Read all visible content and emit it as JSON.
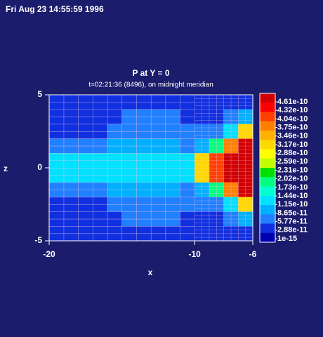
{
  "chart_data": {
    "type": "heatmap",
    "timestamp": "Fri Aug 23 14:55:59 1996",
    "title": "P at Y = 0",
    "subtitle": "t=02:21:36 (8496), on midnight meridian",
    "x_label": "x",
    "y_label": "z",
    "xlim": [
      -20,
      -6
    ],
    "ylim": [
      -5,
      5
    ],
    "xticks": [
      -20,
      -10,
      -6
    ],
    "yticks": [
      -5,
      0,
      5
    ],
    "x": [
      -19.5,
      -18.5,
      -17.5,
      -16.5,
      -15.5,
      -14.5,
      -13.5,
      -12.5,
      -11.5,
      -10.5,
      -9.5,
      -8.5,
      -7.5,
      -6.5
    ],
    "y": [
      4.5,
      3.5,
      2.5,
      1.5,
      0.5,
      -0.5,
      -1.5,
      -2.5,
      -3.5,
      -4.5
    ],
    "values": [
      [
        4e-11,
        4e-11,
        4e-11,
        4e-11,
        4e-11,
        4e-11,
        4e-11,
        4e-11,
        4e-11,
        4e-11,
        4e-11,
        4e-11,
        5e-11,
        5e-11
      ],
      [
        4e-11,
        4e-11,
        4e-11,
        4e-11,
        4e-11,
        6e-11,
        6e-11,
        6e-11,
        6e-11,
        4e-11,
        4e-11,
        5e-11,
        6e-11,
        1e-10
      ],
      [
        5e-11,
        5e-11,
        5e-11,
        5e-11,
        7e-11,
        7e-11,
        7e-11,
        7e-11,
        7e-11,
        6e-11,
        6e-11,
        7e-11,
        1.3e-10,
        3e-10
      ],
      [
        7e-11,
        7e-11,
        7e-11,
        7e-11,
        9e-11,
        9e-11,
        9e-11,
        9e-11,
        9e-11,
        8e-11,
        9e-11,
        2e-10,
        3.6e-10,
        4.4e-10
      ],
      [
        1.2e-10,
        1.2e-10,
        1.2e-10,
        1.2e-10,
        1.3e-10,
        1.3e-10,
        1.3e-10,
        1.4e-10,
        1.4e-10,
        1.4e-10,
        2.9e-10,
        3.9e-10,
        4.4e-10,
        4.5e-10
      ],
      [
        1.2e-10,
        1.2e-10,
        1.2e-10,
        1.2e-10,
        1.3e-10,
        1.3e-10,
        1.3e-10,
        1.4e-10,
        1.4e-10,
        1.4e-10,
        2.9e-10,
        3.9e-10,
        4.4e-10,
        4.5e-10
      ],
      [
        7e-11,
        7e-11,
        7e-11,
        7e-11,
        9e-11,
        9e-11,
        9e-11,
        9e-11,
        9e-11,
        8e-11,
        9e-11,
        2e-10,
        3.6e-10,
        4.4e-10
      ],
      [
        5e-11,
        5e-11,
        5e-11,
        5e-11,
        7e-11,
        7e-11,
        7e-11,
        7e-11,
        7e-11,
        6e-11,
        6e-11,
        7e-11,
        1.3e-10,
        3e-10
      ],
      [
        4e-11,
        4e-11,
        4e-11,
        4e-11,
        4e-11,
        6e-11,
        6e-11,
        6e-11,
        6e-11,
        4e-11,
        4e-11,
        5e-11,
        6e-11,
        1e-10
      ],
      [
        4e-11,
        4e-11,
        4e-11,
        4e-11,
        4e-11,
        4e-11,
        4e-11,
        4e-11,
        4e-11,
        4e-11,
        4e-11,
        4e-11,
        5e-11,
        5e-11
      ]
    ],
    "colorbar": {
      "levels": [
        {
          "value": 4.61e-10,
          "label": "4.61e-10"
        },
        {
          "value": 4.32e-10,
          "label": "4.32e-10"
        },
        {
          "value": 4.04e-10,
          "label": "4.04e-10"
        },
        {
          "value": 3.75e-10,
          "label": "3.75e-10"
        },
        {
          "value": 3.46e-10,
          "label": "3.46e-10"
        },
        {
          "value": 3.17e-10,
          "label": "3.17e-10"
        },
        {
          "value": 2.88e-10,
          "label": "2.88e-10"
        },
        {
          "value": 2.59e-10,
          "label": "2.59e-10"
        },
        {
          "value": 2.31e-10,
          "label": "2.31e-10"
        },
        {
          "value": 2.02e-10,
          "label": "2.02e-10"
        },
        {
          "value": 1.73e-10,
          "label": "1.73e-10"
        },
        {
          "value": 1.44e-10,
          "label": "1.44e-10"
        },
        {
          "value": 1.15e-10,
          "label": "1.15e-10"
        },
        {
          "value": 8.65e-11,
          "label": "8.65e-11"
        },
        {
          "value": 5.77e-11,
          "label": "5.77e-11"
        },
        {
          "value": 2.88e-11,
          "label": "2.88e-11"
        },
        {
          "value": 1e-15,
          "label": "1e-15"
        }
      ],
      "colors": [
        "#d00000",
        "#ff0000",
        "#ff4000",
        "#ff8000",
        "#ffb000",
        "#ffd800",
        "#ffff00",
        "#c0ff00",
        "#00e000",
        "#00ff80",
        "#00ffd0",
        "#00e0ff",
        "#00b0ff",
        "#2080ff",
        "#1030e0",
        "#0000b0"
      ]
    }
  }
}
